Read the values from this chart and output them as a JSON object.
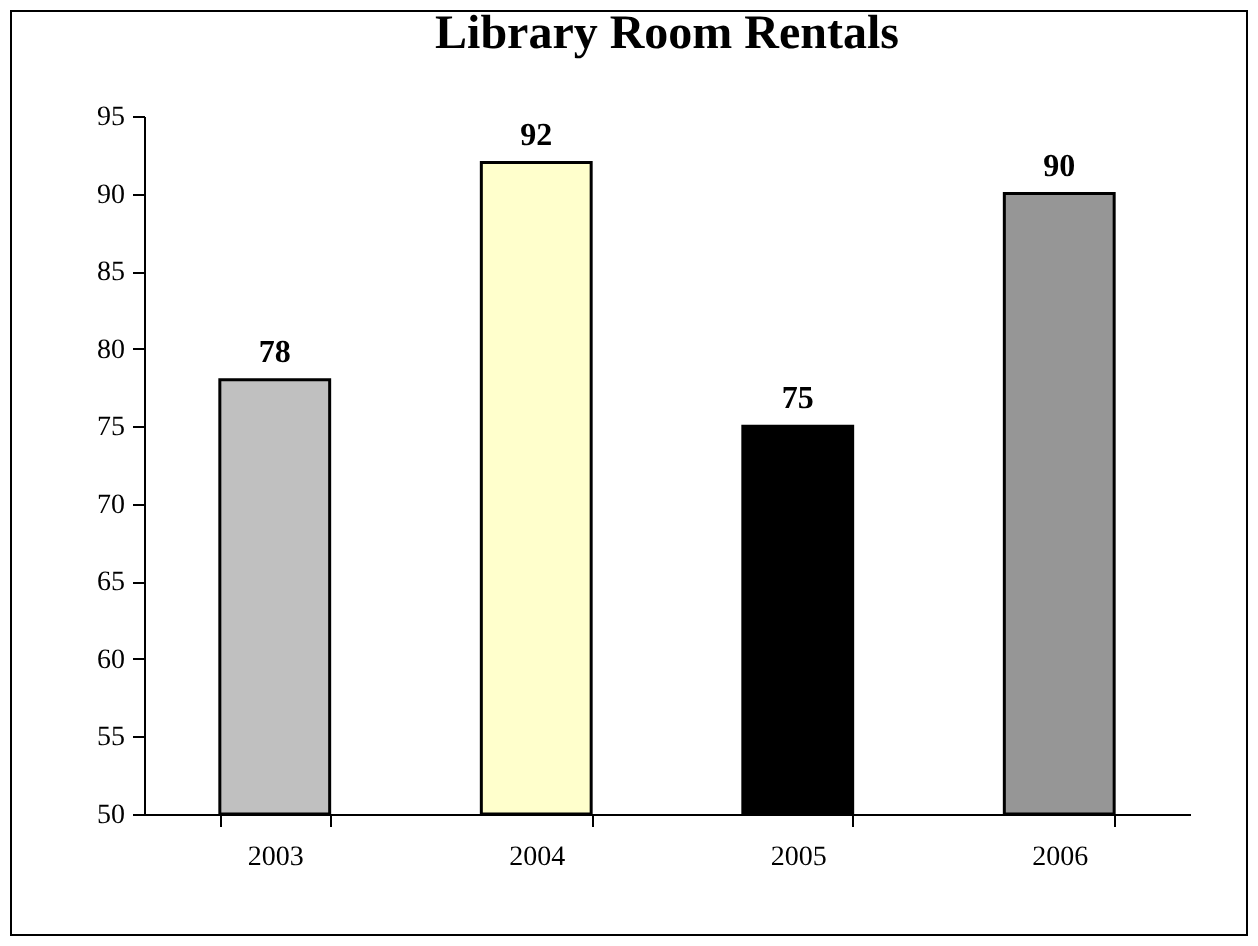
{
  "chart_data": {
    "type": "bar",
    "title": "Library Room Rentals",
    "categories": [
      "2003",
      "2004",
      "2005",
      "2006"
    ],
    "values": [
      78,
      92,
      75,
      90
    ],
    "colors": [
      "#c0c0c0",
      "#ffffcc",
      "#000000",
      "#969696"
    ],
    "ylim": [
      50,
      95
    ],
    "yticks": [
      50,
      55,
      60,
      65,
      70,
      75,
      80,
      85,
      90,
      95
    ],
    "grid": false,
    "legend": false,
    "data_labels": true
  }
}
